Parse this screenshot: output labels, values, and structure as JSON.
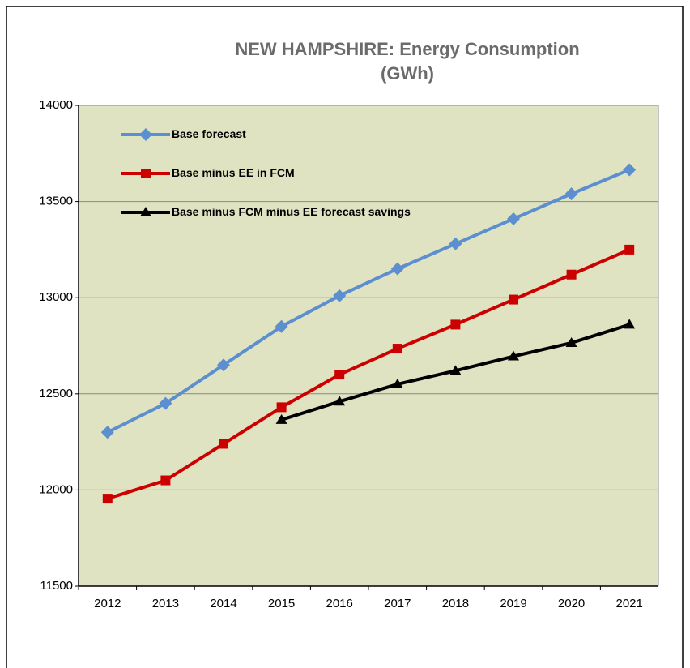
{
  "chart_data": {
    "type": "line",
    "title": [
      "NEW HAMPSHIRE: Energy Consumption",
      "(GWh)"
    ],
    "categories": [
      "2012",
      "2013",
      "2014",
      "2015",
      "2016",
      "2017",
      "2018",
      "2019",
      "2020",
      "2021"
    ],
    "series": [
      {
        "name": "Base forecast",
        "color": "#5b8fd0",
        "marker": "diamond",
        "values": [
          12300,
          12450,
          12650,
          12850,
          13010,
          13150,
          13280,
          13410,
          13540,
          13665
        ]
      },
      {
        "name": "Base minus EE in FCM",
        "color": "#cc0000",
        "marker": "square",
        "values": [
          11955,
          12050,
          12240,
          12430,
          12600,
          12735,
          12860,
          12990,
          13120,
          13250
        ]
      },
      {
        "name": "Base minus FCM minus EE forecast savings",
        "color": "#000000",
        "marker": "triangle",
        "values": [
          null,
          null,
          null,
          12365,
          12460,
          12550,
          12620,
          12695,
          12765,
          12860
        ]
      }
    ],
    "ylim": [
      11500,
      14000
    ],
    "yticks": [
      11500,
      12000,
      12500,
      13000,
      13500,
      14000
    ],
    "grid": true,
    "legend": "upper left",
    "plot_background": "#dfe3c1"
  }
}
